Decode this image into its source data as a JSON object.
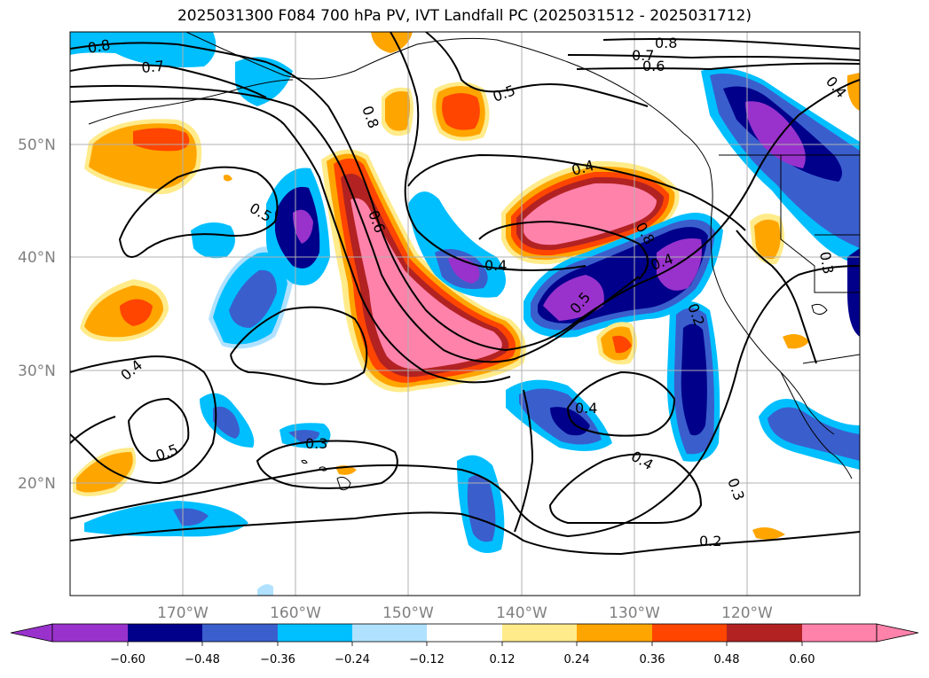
{
  "title": "2025031300 F084 700 hPa PV, IVT Landfall PC (2025031512 - 2025031712)",
  "map": {
    "lon_range": [
      -180,
      -110
    ],
    "lat_range": [
      10,
      60
    ],
    "lon_ticks": [
      "170°W",
      "160°W",
      "150°W",
      "140°W",
      "130°W",
      "120°W"
    ],
    "lat_ticks": [
      "50°N",
      "40°N",
      "30°N",
      "20°N"
    ],
    "grid": true
  },
  "contour_labels": [
    "0.8",
    "0.7",
    "0.6",
    "0.8",
    "0.8",
    "0.7",
    "0.5",
    "0.5",
    "0.6",
    "0.4",
    "0.4",
    "0.8",
    "0.4",
    "0.5",
    "0.2",
    "0.4",
    "0.4",
    "0.5",
    "0.3",
    "0.4",
    "0.3",
    "0.2",
    "0.4",
    "0.3"
  ],
  "colorbar": {
    "ticks": [
      "−0.60",
      "−0.48",
      "−0.36",
      "−0.24",
      "−0.12",
      "0.12",
      "0.24",
      "0.36",
      "0.48",
      "0.60"
    ],
    "colors": [
      "#9932cc",
      "#00008b",
      "#3a5fcd",
      "#00bfff",
      "#b0e2ff",
      "#ffffff",
      "#ffeb8a",
      "#ffa500",
      "#ff4500",
      "#b22222",
      "#ff82ab",
      "#ff82ab"
    ],
    "extend": "both"
  },
  "shading_colors": {
    "purple": "#9932cc",
    "navy": "#00008b",
    "royal": "#3a5fcd",
    "sky": "#00bfff",
    "lightsky": "#b0e2ff",
    "yellow": "#ffeb8a",
    "orange": "#ffa500",
    "redorange": "#ff4500",
    "firebrick": "#b22222",
    "pink": "#ff82ab"
  }
}
